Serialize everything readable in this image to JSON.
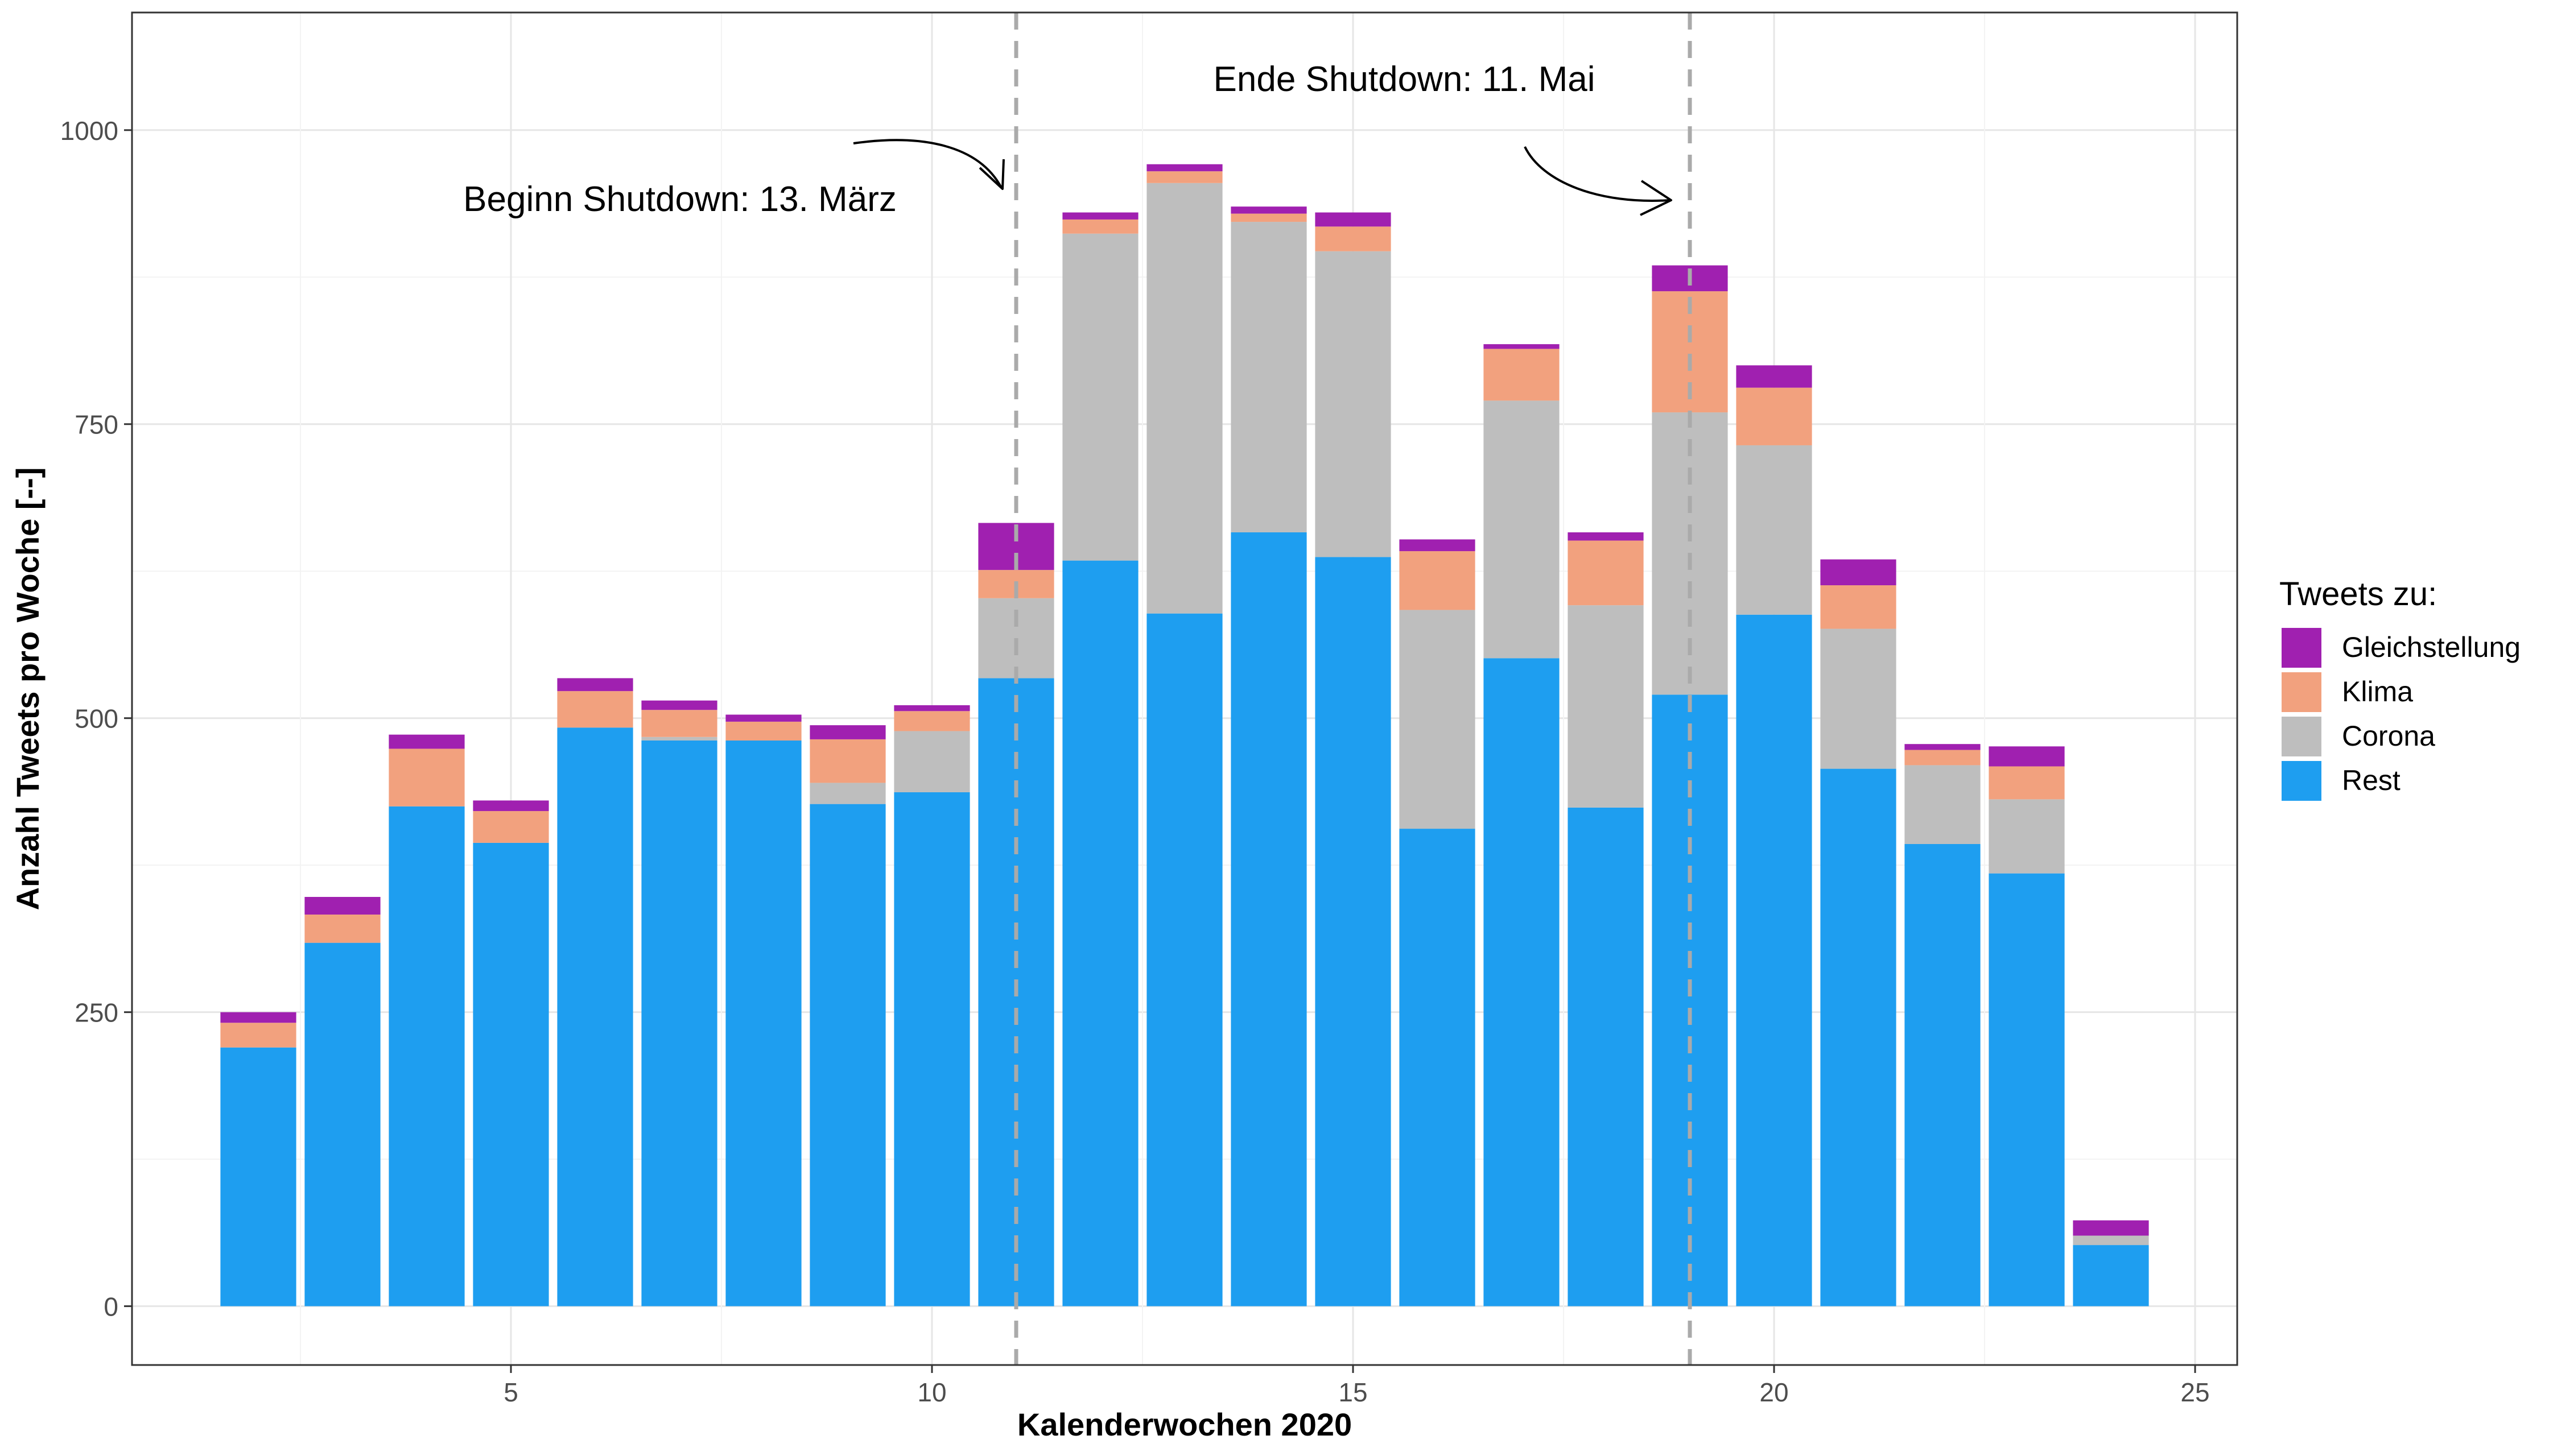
{
  "chart_data": {
    "type": "bar",
    "stacked": true,
    "xlabel": "Kalenderwochen 2020",
    "ylabel": "Anzahl Tweets pro Woche [--]",
    "xlim": [
      0.5,
      25.5
    ],
    "ylim": [
      -50,
      1100
    ],
    "x_ticks": [
      5,
      10,
      15,
      20,
      25
    ],
    "y_ticks": [
      0,
      250,
      500,
      750,
      1000
    ],
    "grid": true,
    "legend": {
      "title": "Tweets zu:",
      "position": "right",
      "entries": [
        "Gleichstellung",
        "Klima",
        "Corona",
        "Rest"
      ]
    },
    "x": [
      2,
      3,
      4,
      5,
      6,
      7,
      8,
      9,
      10,
      11,
      12,
      13,
      14,
      15,
      16,
      17,
      18,
      19,
      20,
      21,
      22,
      23,
      24
    ],
    "series": [
      {
        "name": "Rest",
        "color": "#1e9ef0",
        "values": [
          220,
          309,
          425,
          394,
          492,
          481,
          481,
          427,
          437,
          534,
          634,
          589,
          658,
          637,
          406,
          551,
          424,
          520,
          588,
          457,
          393,
          368,
          52
        ]
      },
      {
        "name": "Corona",
        "color": "#bebebe",
        "values": [
          0,
          0,
          0,
          0,
          0,
          3,
          0,
          18,
          52,
          68,
          278,
          366,
          264,
          260,
          186,
          219,
          172,
          240,
          144,
          119,
          67,
          63,
          8
        ]
      },
      {
        "name": "Klima",
        "color": "#f2a17e",
        "values": [
          21,
          24,
          49,
          27,
          31,
          23,
          16,
          37,
          17,
          24,
          12,
          10,
          7,
          21,
          50,
          44,
          55,
          103,
          49,
          37,
          13,
          28,
          0
        ]
      },
      {
        "name": "Gleichstellung",
        "color": "#a020b0",
        "values": [
          9,
          15,
          12,
          9,
          11,
          8,
          6,
          12,
          5,
          40,
          6,
          6,
          6,
          12,
          10,
          4,
          7,
          22,
          19,
          22,
          5,
          17,
          13
        ]
      }
    ],
    "reference_lines": [
      {
        "x": 11,
        "style": "dashed",
        "color": "#aaaaaa",
        "label": "Beginn Shutdown: 13. März"
      },
      {
        "x": 19,
        "style": "dashed",
        "color": "#aaaaaa",
        "label": "Ende Shutdown: 11. Mai"
      }
    ]
  }
}
